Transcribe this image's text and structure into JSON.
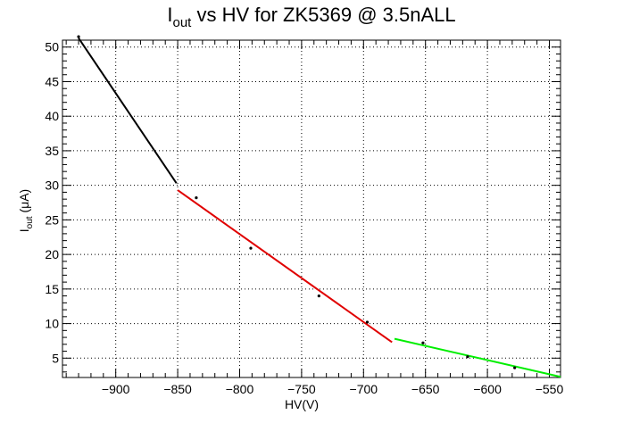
{
  "chart_data": {
    "type": "scatter",
    "title": {
      "main": "I",
      "sub": "out",
      "rest": " vs HV for ZK5369 @ 3.5nALL"
    },
    "xlabel": "HV(V)",
    "ylabel": {
      "main": "I",
      "sub": "out",
      "rest": " (μA)"
    },
    "xlim": [
      -943,
      -541
    ],
    "ylim": [
      2.2,
      51
    ],
    "grid": true,
    "x_ticks": [
      {
        "value": -900,
        "label": "−900"
      },
      {
        "value": -850,
        "label": "−850"
      },
      {
        "value": -800,
        "label": "−800"
      },
      {
        "value": -750,
        "label": "−750"
      },
      {
        "value": -700,
        "label": "−700"
      },
      {
        "value": -650,
        "label": "−650"
      },
      {
        "value": -600,
        "label": "−600"
      },
      {
        "value": -550,
        "label": "−550"
      }
    ],
    "y_ticks": [
      {
        "value": 5,
        "label": "5"
      },
      {
        "value": 10,
        "label": "10"
      },
      {
        "value": 15,
        "label": "15"
      },
      {
        "value": 20,
        "label": "20"
      },
      {
        "value": 25,
        "label": "25"
      },
      {
        "value": 30,
        "label": "30"
      },
      {
        "value": 35,
        "label": "35"
      },
      {
        "value": 40,
        "label": "40"
      },
      {
        "value": 45,
        "label": "45"
      },
      {
        "value": 50,
        "label": "50"
      }
    ],
    "points": [
      {
        "x": -930,
        "y": 51.5
      },
      {
        "x": -835,
        "y": 28.2
      },
      {
        "x": -791,
        "y": 20.9
      },
      {
        "x": -736,
        "y": 14.0
      },
      {
        "x": -697,
        "y": 10.2
      },
      {
        "x": -652,
        "y": 7.2
      },
      {
        "x": -616,
        "y": 5.2
      },
      {
        "x": -578,
        "y": 3.6
      }
    ],
    "fits": [
      {
        "color": "#000000",
        "x": [
          -930,
          -851
        ],
        "y": [
          51.3,
          30.3
        ]
      },
      {
        "color": "#e00000",
        "x": [
          -850,
          -677
        ],
        "y": [
          29.3,
          7.3
        ]
      },
      {
        "color": "#00ee00",
        "x": [
          -675,
          -541
        ],
        "y": [
          7.8,
          2.3
        ]
      }
    ]
  }
}
